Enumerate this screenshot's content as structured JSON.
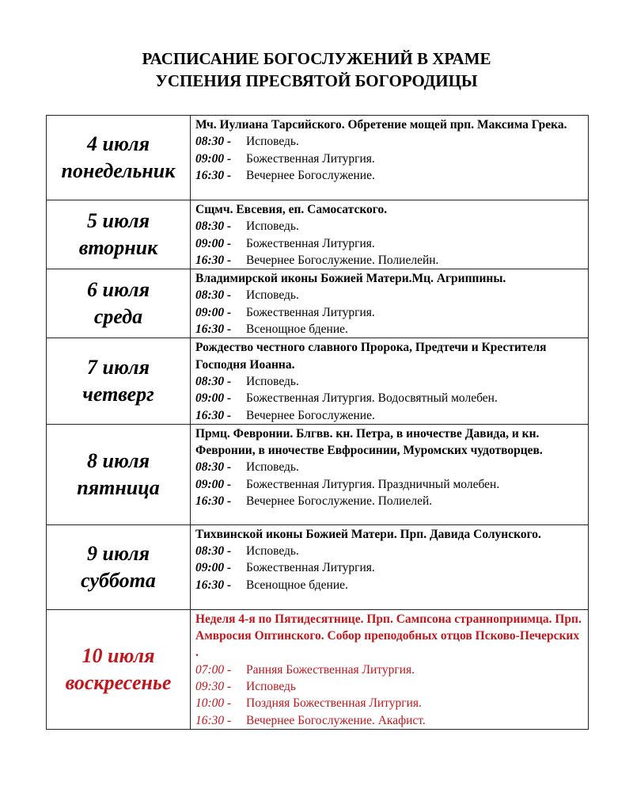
{
  "title": [
    "РАСПИСАНИЕ БОГОСЛУЖЕНИЙ В ХРАМЕ",
    "УСПЕНИЯ ПРЕСВЯТОЙ БОГОРОДИЦЫ"
  ],
  "accent_color": "#c0171c",
  "days": [
    {
      "date": "4 июля",
      "weekday": "понедельник",
      "feast": "Мч. Иулиана Тарсийского. Обретение мощей прп. Максима Грека.",
      "services": [
        {
          "time": "08:30 -",
          "name": "Исповедь."
        },
        {
          "time": "09:00 -",
          "name": "Божественная Литургия."
        },
        {
          "time": "16:30 -",
          "name": "Вечернее Богослужение."
        }
      ]
    },
    {
      "date": "5 июля",
      "weekday": "вторник",
      "feast": "Сщмч. Евсевия, еп. Самосатского.",
      "services": [
        {
          "time": "08:30 -",
          "name": "Исповедь."
        },
        {
          "time": "09:00 -",
          "name": "Божественная Литургия."
        },
        {
          "time": "16:30 -",
          "name": "Вечернее Богослужение. Полиелейн."
        }
      ]
    },
    {
      "date": "6 июля",
      "weekday": "среда",
      "feast": "Владимирской иконы Божией Матери.Мц. Агриппины.",
      "services": [
        {
          "time": "08:30 -",
          "name": "Исповедь."
        },
        {
          "time": "09:00 -",
          "name": "Божественная Литургия."
        },
        {
          "time": "16:30 -",
          "name": "Всенощное бдение."
        }
      ]
    },
    {
      "date": "7 июля",
      "weekday": "четверг",
      "feast": "Рождество честного славного Пророка, Предтечи и Крестителя Господня Иоанна.",
      "services": [
        {
          "time": "08:30 -",
          "name": "Исповедь."
        },
        {
          "time": "09:00 -",
          "name": "Божественная Литургия. Водосвятный молебен."
        },
        {
          "time": "16:30 -",
          "name": "Вечернее Богослужение."
        }
      ]
    },
    {
      "date": "8 июля",
      "weekday": "пятница",
      "feast": "Прмц. Февронии. Блгвв. кн. Петра, в иночестве Давида, и кн. Февронии, в иночестве Евфросинии, Муромских чудотворцев.",
      "services": [
        {
          "time": "08:30 -",
          "name": "Исповедь."
        },
        {
          "time": "09:00 -",
          "name": "Божественная Литургия. Праздничный молебен."
        },
        {
          "time": "16:30 -",
          "name": "Вечернее Богослужение. Полиелей."
        }
      ]
    },
    {
      "date": "9 июля",
      "weekday": "суббота",
      "feast": "Тихвинской иконы Божией Матери. Прп. Давида Солунского.",
      "services": [
        {
          "time": "08:30 -",
          "name": "Исповедь."
        },
        {
          "time": "09:00 -",
          "name": "Божественная Литургия."
        },
        {
          "time": "16:30 -",
          "name": "Всенощное бдение."
        }
      ]
    },
    {
      "date": "10 июля",
      "weekday": "воскресенье",
      "feast": "Неделя 4-я по Пятидесятнице. Прп. Сампсона странноприимца. Прп. Амвросия Оптинского. Собор преподобных отцов Псково-Печерских .",
      "red": true,
      "services": [
        {
          "time": "07:00 -",
          "name": "Ранняя Божественная Литургия."
        },
        {
          "time": "09:30 -",
          "name": "Исповедь"
        },
        {
          "time": "10:00 -",
          "name": "Поздняя Божественная Литургия."
        },
        {
          "time": "16:30 -",
          "name": "Вечернее Богослужение. Акафист."
        }
      ]
    }
  ]
}
